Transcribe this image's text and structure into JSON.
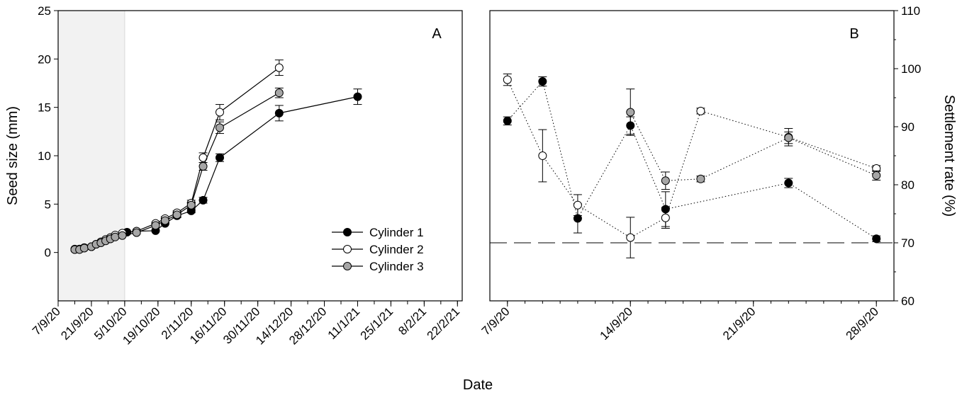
{
  "figure": {
    "xlabel": "Date"
  },
  "chart_data": [
    {
      "type": "line",
      "panel": "A",
      "xlabel": "",
      "ylabel": "Seed size (mm)",
      "ylim": [
        -5,
        25
      ],
      "yticks": [
        0,
        5,
        10,
        15,
        20,
        25
      ],
      "xlim_days": [
        0,
        170
      ],
      "x_tick_labels": [
        {
          "label": "7/9/20",
          "day": 0
        },
        {
          "label": "21/9/20",
          "day": 14
        },
        {
          "label": "5/10/20",
          "day": 28
        },
        {
          "label": "19/10/20",
          "day": 42
        },
        {
          "label": "2/11/20",
          "day": 56
        },
        {
          "label": "16/11/20",
          "day": 70
        },
        {
          "label": "30/11/20",
          "day": 84
        },
        {
          "label": "14/12/20",
          "day": 98
        },
        {
          "label": "28/12/20",
          "day": 112
        },
        {
          "label": "11/1/21",
          "day": 126
        },
        {
          "label": "25/1/21",
          "day": 140
        },
        {
          "label": "8/2/21",
          "day": 154
        },
        {
          "label": "22/2/21",
          "day": 168
        }
      ],
      "shaded_region_days": [
        0,
        28
      ],
      "legend": {
        "position": "center-right",
        "entries": [
          "Cylinder 1",
          "Cylinder 2",
          "Cylinder 3"
        ]
      },
      "series": [
        {
          "name": "Cylinder 1",
          "fill": "#000000",
          "x": [
            7,
            9,
            11,
            14,
            16,
            18,
            20,
            22,
            24,
            27,
            29,
            33,
            41,
            45,
            50,
            56,
            61,
            68,
            93,
            126,
            151
          ],
          "y": [
            0.35,
            0.35,
            0.5,
            0.6,
            0.85,
            1.05,
            1.3,
            1.5,
            1.75,
            1.95,
            2.1,
            2.2,
            2.25,
            3.0,
            3.8,
            4.3,
            5.4,
            9.8,
            14.4,
            16.1,
            null
          ],
          "err": [
            0.05,
            0.05,
            0.05,
            0.1,
            0.1,
            0.1,
            0.1,
            0.1,
            0.1,
            0.1,
            0.1,
            0.1,
            0.1,
            0.15,
            0.2,
            0.2,
            0.3,
            0.4,
            0.8,
            0.8,
            null
          ]
        },
        {
          "name": "Cylinder 2",
          "fill": "#ffffff",
          "x": [
            7,
            9,
            11,
            14,
            16,
            18,
            20,
            22,
            24,
            27,
            33,
            41,
            45,
            50,
            56,
            61,
            68,
            93,
            126,
            151
          ],
          "y": [
            0.3,
            0.35,
            0.5,
            0.6,
            0.85,
            1.1,
            1.35,
            1.55,
            1.8,
            2.0,
            2.2,
            3.0,
            3.5,
            4.1,
            5.1,
            9.8,
            14.5,
            19.1,
            null,
            null
          ],
          "err": [
            0.05,
            0.05,
            0.05,
            0.1,
            0.1,
            0.1,
            0.1,
            0.1,
            0.1,
            0.1,
            0.1,
            0.15,
            0.2,
            0.2,
            0.3,
            0.5,
            0.8,
            0.8,
            null,
            null
          ]
        },
        {
          "name": "Cylinder 3",
          "fill": "#a6a6a6",
          "x": [
            7,
            9,
            11,
            14,
            16,
            18,
            20,
            22,
            24,
            27,
            33,
            41,
            45,
            50,
            56,
            61,
            68,
            93,
            126,
            151
          ],
          "y": [
            0.3,
            0.3,
            0.45,
            0.6,
            0.85,
            1.0,
            1.2,
            1.4,
            1.6,
            1.75,
            2.05,
            2.8,
            3.3,
            3.9,
            4.9,
            8.9,
            12.9,
            16.5,
            null,
            null
          ],
          "err": [
            0.05,
            0.05,
            0.05,
            0.1,
            0.1,
            0.1,
            0.1,
            0.1,
            0.1,
            0.1,
            0.1,
            0.15,
            0.2,
            0.2,
            0.3,
            0.4,
            0.6,
            0.5,
            null,
            null
          ]
        }
      ]
    },
    {
      "type": "scatter",
      "panel": "B",
      "xlabel": "",
      "ylabel": "Settlement rate (%)",
      "ylim": [
        60,
        110
      ],
      "yticks": [
        60,
        70,
        80,
        90,
        100,
        110
      ],
      "xlim_days": [
        -1,
        22
      ],
      "x_tick_labels": [
        {
          "label": "7/9/20",
          "day": 0
        },
        {
          "label": "14/9/20",
          "day": 7
        },
        {
          "label": "21/9/20",
          "day": 14
        },
        {
          "label": "28/9/20",
          "day": 21
        }
      ],
      "reference_line": 70,
      "series": [
        {
          "name": "Cylinder 1",
          "fill": "#000000",
          "x": [
            0,
            2,
            4,
            7,
            9,
            11,
            16,
            21
          ],
          "y": [
            91,
            97.8,
            74.2,
            90.2,
            75.8,
            null,
            80.3,
            70.7
          ],
          "err": [
            0.7,
            0.8,
            2.5,
            1.5,
            3.0,
            null,
            0.8,
            0.5
          ]
        },
        {
          "name": "Cylinder 2",
          "fill": "#ffffff",
          "x": [
            0,
            2,
            4,
            7,
            9,
            11,
            16,
            21
          ],
          "y": [
            98.1,
            85,
            76.5,
            70.9,
            74.3,
            92.7,
            88.2,
            82.8
          ],
          "err": [
            1.0,
            4.5,
            1.8,
            3.5,
            1.8,
            0.5,
            1.5,
            0.5
          ]
        },
        {
          "name": "Cylinder 3",
          "fill": "#a6a6a6",
          "x": [
            7,
            9,
            11,
            16,
            21
          ],
          "y": [
            92.5,
            80.7,
            81,
            88.1,
            81.6
          ],
          "err": [
            4.0,
            1.5,
            0.5,
            1.0,
            0.8
          ]
        }
      ]
    }
  ]
}
